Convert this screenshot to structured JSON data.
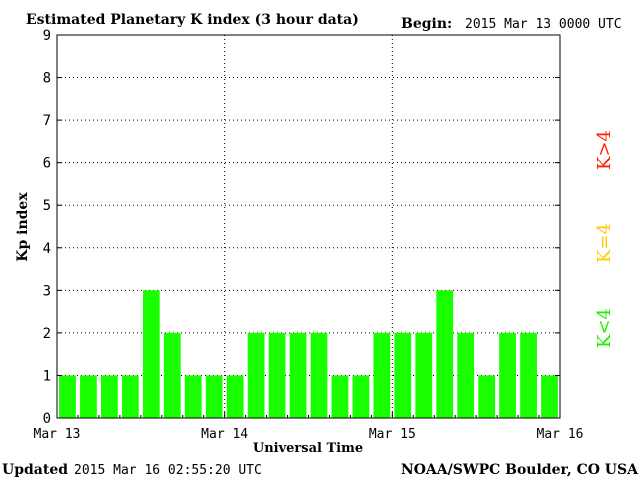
{
  "title": "Estimated Planetary K index (3 hour data)",
  "begin_label": "Begin:",
  "begin_value": "2015 Mar 13 0000 UTC",
  "updated_label": "Updated",
  "updated_value": "2015 Mar 16 02:55:20 UTC",
  "credit": "NOAA/SWPC Boulder, CO USA",
  "legend": [
    {
      "label": "K>4",
      "color": "#ff2200"
    },
    {
      "label": "K=4",
      "color": "#ffcc00"
    },
    {
      "label": "K<4",
      "color": "#22ee00"
    }
  ],
  "colors": {
    "bar": "#1aff00",
    "grid": "#000000"
  },
  "chart_data": {
    "type": "bar",
    "title": "Estimated Planetary K index (3 hour data)",
    "xlabel": "Universal Time",
    "ylabel": "Kp index",
    "ylim": [
      0,
      9
    ],
    "yticks": [
      "0",
      "1",
      "2",
      "3",
      "4",
      "5",
      "6",
      "7",
      "8",
      "9"
    ],
    "xticks": [
      "Mar 13",
      "Mar 14",
      "Mar 15",
      "Mar 16"
    ],
    "grid": true,
    "values": [
      1,
      1,
      1,
      1,
      3,
      2,
      1,
      1,
      1,
      2,
      2,
      2,
      2,
      1,
      1,
      2,
      2,
      2,
      3,
      2,
      1,
      2,
      2,
      1
    ]
  }
}
